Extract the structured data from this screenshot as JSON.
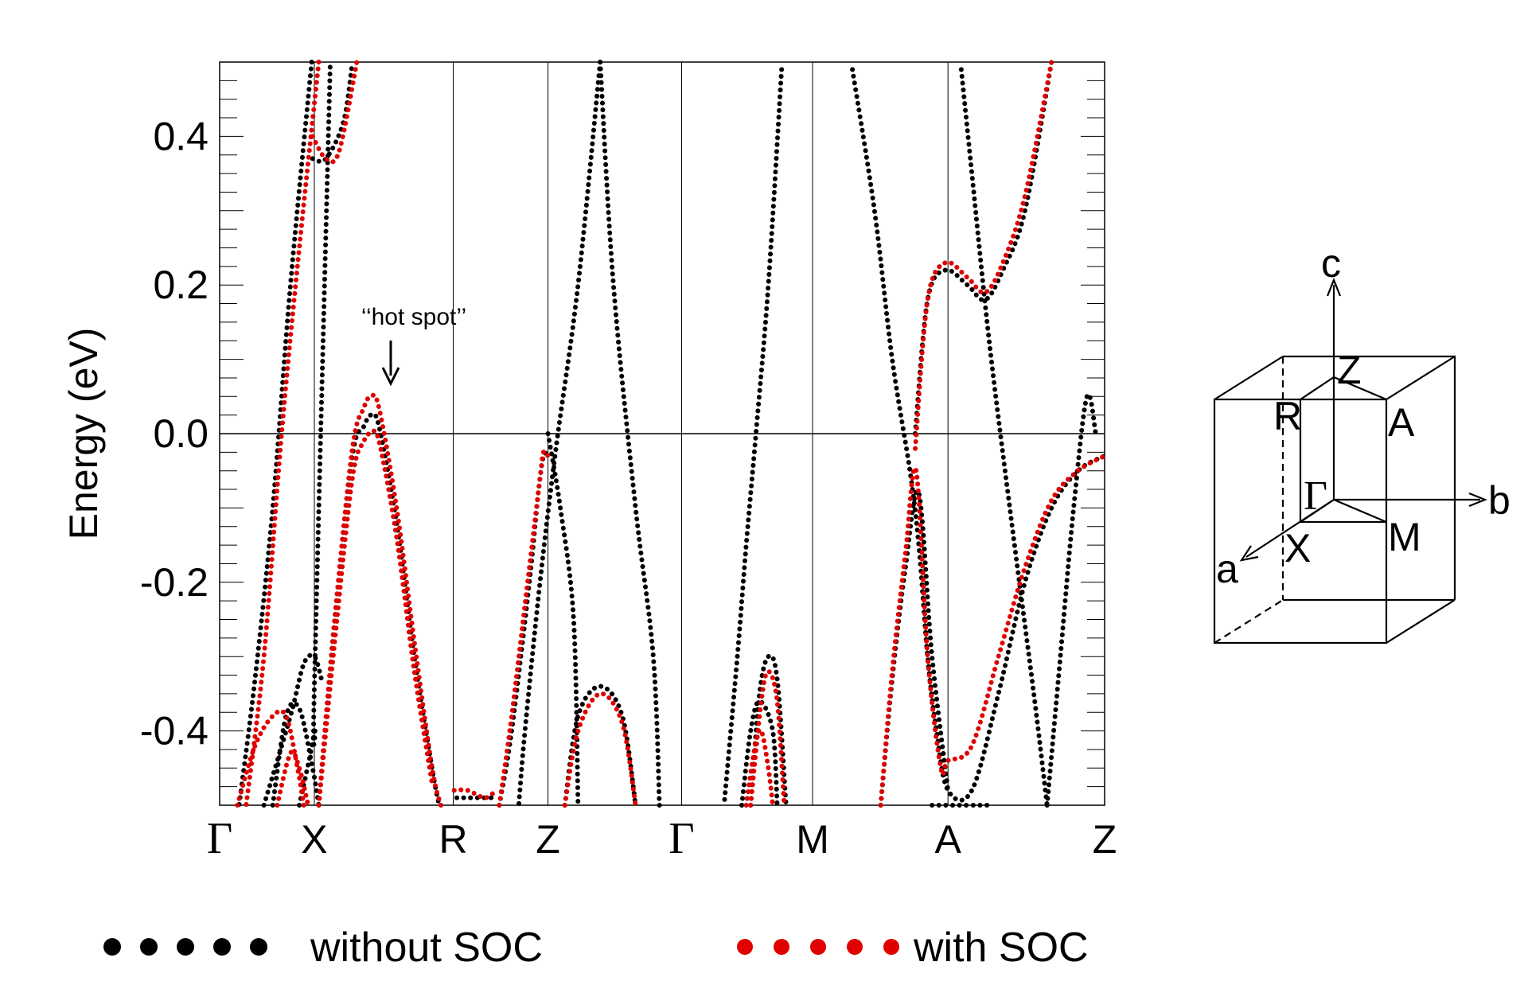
{
  "chart_data": {
    "type": "line",
    "ylabel": "Energy (eV)",
    "ylim": [
      -0.5,
      0.5
    ],
    "y_ticks": [
      {
        "value": 0.4,
        "label": "0.4"
      },
      {
        "value": 0.2,
        "label": "0.2"
      },
      {
        "value": 0.0,
        "label": "0.0"
      },
      {
        "value": -0.2,
        "label": "-0.2"
      },
      {
        "value": -0.4,
        "label": "-0.4"
      }
    ],
    "fermi_level": 0.0,
    "kpath_length": 1.0,
    "k_points": [
      {
        "label": "Γ",
        "k": 0.0
      },
      {
        "label": "X",
        "k": 0.107
      },
      {
        "label": "R",
        "k": 0.264
      },
      {
        "label": "Z",
        "k": 0.371
      },
      {
        "label": "Γ",
        "k": 0.522
      },
      {
        "label": "M",
        "k": 0.67
      },
      {
        "label": "A",
        "k": 0.823
      },
      {
        "label": "Z",
        "k": 1.0
      }
    ],
    "annotation": {
      "text": "‘‘hot spot’’",
      "k": 0.171,
      "energy_from": 0.11,
      "energy_to": 0.06
    },
    "series": [
      {
        "name": "without SOC",
        "color": "#000000",
        "bands": [
          {
            "points": [
              [
                0.104,
                0.5
              ],
              [
                0.08,
                0.2
              ],
              [
                0.06,
                -0.1
              ],
              [
                0.04,
                -0.33
              ],
              [
                0.022,
                -0.5
              ]
            ]
          },
          {
            "points": [
              [
                0.09,
                -0.5
              ],
              [
                0.107,
                -0.4
              ],
              [
                0.107,
                -0.34
              ],
              [
                0.125,
                0.5
              ]
            ]
          },
          {
            "points": [
              [
                0.105,
                0.37
              ],
              [
                0.12,
                0.37
              ],
              [
                0.14,
                0.42
              ],
              [
                0.15,
                0.5
              ]
            ]
          },
          {
            "points": [
              [
                0.06,
                -0.5
              ],
              [
                0.075,
                -0.38
              ],
              [
                0.09,
                -0.37
              ],
              [
                0.105,
                -0.45
              ],
              [
                0.112,
                -0.5
              ]
            ]
          },
          {
            "points": [
              [
                0.05,
                -0.5
              ],
              [
                0.08,
                -0.38
              ],
              [
                0.095,
                -0.31
              ],
              [
                0.107,
                -0.3
              ],
              [
                0.115,
                -0.33
              ]
            ]
          },
          {
            "points": [
              [
                0.112,
                -0.5
              ],
              [
                0.13,
                -0.25
              ],
              [
                0.15,
                -0.03
              ],
              [
                0.163,
                0.01
              ],
              [
                0.171,
                0.025
              ],
              [
                0.18,
                0.01
              ],
              [
                0.2,
                -0.12
              ],
              [
                0.22,
                -0.3
              ],
              [
                0.24,
                -0.45
              ],
              [
                0.248,
                -0.5
              ]
            ]
          },
          {
            "points": [
              [
                0.268,
                -0.49
              ],
              [
                0.28,
                -0.49
              ],
              [
                0.3,
                -0.49
              ],
              [
                0.312,
                -0.49
              ]
            ]
          },
          {
            "points": [
              [
                0.316,
                -0.5
              ],
              [
                0.33,
                -0.4
              ],
              [
                0.35,
                -0.2
              ],
              [
                0.36,
                -0.08
              ],
              [
                0.366,
                -0.03
              ],
              [
                0.371,
                -0.03
              ]
            ]
          },
          {
            "points": [
              [
                0.43,
                0.5
              ],
              [
                0.405,
                0.2
              ],
              [
                0.38,
                -0.02
              ],
              [
                0.362,
                -0.2
              ],
              [
                0.345,
                -0.4
              ],
              [
                0.338,
                -0.5
              ]
            ]
          },
          {
            "points": [
              [
                0.43,
                0.5
              ],
              [
                0.445,
                0.2
              ],
              [
                0.47,
                -0.1
              ],
              [
                0.49,
                -0.3
              ],
              [
                0.497,
                -0.5
              ]
            ]
          },
          {
            "points": [
              [
                0.371,
                0.0
              ],
              [
                0.385,
                -0.1
              ],
              [
                0.4,
                -0.25
              ],
              [
                0.405,
                -0.5
              ]
            ]
          },
          {
            "points": [
              [
                0.39,
                -0.5
              ],
              [
                0.405,
                -0.38
              ],
              [
                0.43,
                -0.34
              ],
              [
                0.455,
                -0.38
              ],
              [
                0.47,
                -0.5
              ]
            ]
          },
          {
            "points": [
              [
                0.635,
                0.49
              ],
              [
                0.62,
                0.2
              ],
              [
                0.606,
                0.0
              ],
              [
                0.595,
                -0.15
              ],
              [
                0.585,
                -0.3
              ],
              [
                0.57,
                -0.5
              ]
            ]
          },
          {
            "points": [
              [
                0.59,
                -0.5
              ],
              [
                0.6,
                -0.4
              ],
              [
                0.61,
                -0.36
              ],
              [
                0.625,
                -0.4
              ],
              [
                0.63,
                -0.5
              ]
            ]
          },
          {
            "points": [
              [
                0.6,
                -0.5
              ],
              [
                0.61,
                -0.35
              ],
              [
                0.62,
                -0.3
              ],
              [
                0.63,
                -0.33
              ],
              [
                0.64,
                -0.5
              ]
            ]
          },
          {
            "points": [
              [
                0.715,
                0.49
              ],
              [
                0.74,
                0.3
              ],
              [
                0.76,
                0.1
              ],
              [
                0.78,
                -0.05
              ],
              [
                0.79,
                -0.15
              ],
              [
                0.8,
                -0.3
              ],
              [
                0.81,
                -0.4
              ],
              [
                0.823,
                -0.48
              ],
              [
                0.85,
                -0.48
              ],
              [
                0.88,
                -0.35
              ],
              [
                0.91,
                -0.2
              ],
              [
                0.94,
                -0.1
              ],
              [
                0.97,
                -0.05
              ],
              [
                1.0,
                -0.03
              ]
            ]
          },
          {
            "points": [
              [
                0.747,
                -0.5
              ],
              [
                0.76,
                -0.33
              ],
              [
                0.775,
                -0.18
              ],
              [
                0.79,
                -0.08
              ],
              [
                0.805,
                -0.3
              ],
              [
                0.823,
                -0.48
              ]
            ]
          },
          {
            "points": [
              [
                0.786,
                0.0
              ],
              [
                0.8,
                0.18
              ],
              [
                0.82,
                0.22
              ],
              [
                0.845,
                0.2
              ],
              [
                0.865,
                0.18
              ],
              [
                0.885,
                0.22
              ],
              [
                0.91,
                0.3
              ],
              [
                0.94,
                0.5
              ]
            ]
          },
          {
            "points": [
              [
                0.805,
                -0.5
              ],
              [
                0.84,
                -0.5
              ],
              [
                0.87,
                -0.5
              ]
            ]
          },
          {
            "points": [
              [
                0.935,
                -0.5
              ],
              [
                0.95,
                -0.3
              ],
              [
                0.965,
                -0.1
              ],
              [
                0.98,
                0.05
              ],
              [
                0.99,
                0.0
              ]
            ]
          },
          {
            "points": [
              [
                0.838,
                0.49
              ],
              [
                0.85,
                0.35
              ],
              [
                0.87,
                0.12
              ],
              [
                0.895,
                -0.12
              ],
              [
                0.92,
                -0.35
              ],
              [
                0.935,
                -0.5
              ]
            ]
          }
        ]
      },
      {
        "name": "with SOC",
        "color": "#e00000",
        "bands": [
          {
            "points": [
              [
                0.112,
                0.5
              ],
              [
                0.09,
                0.25
              ],
              [
                0.07,
                0.0
              ],
              [
                0.05,
                -0.3
              ],
              [
                0.03,
                -0.5
              ]
            ]
          },
          {
            "points": [
              [
                0.105,
                0.4
              ],
              [
                0.12,
                0.37
              ],
              [
                0.135,
                0.38
              ],
              [
                0.155,
                0.5
              ]
            ]
          },
          {
            "points": [
              [
                0.02,
                -0.5
              ],
              [
                0.04,
                -0.42
              ],
              [
                0.06,
                -0.38
              ],
              [
                0.075,
                -0.38
              ],
              [
                0.088,
                -0.45
              ],
              [
                0.095,
                -0.5
              ]
            ]
          },
          {
            "points": [
              [
                0.065,
                -0.5
              ],
              [
                0.08,
                -0.43
              ],
              [
                0.09,
                -0.45
              ],
              [
                0.1,
                -0.5
              ]
            ]
          },
          {
            "points": [
              [
                0.112,
                -0.5
              ],
              [
                0.13,
                -0.25
              ],
              [
                0.15,
                -0.02
              ],
              [
                0.163,
                0.035
              ],
              [
                0.171,
                0.05
              ],
              [
                0.18,
                0.035
              ],
              [
                0.2,
                -0.1
              ],
              [
                0.22,
                -0.28
              ],
              [
                0.24,
                -0.45
              ],
              [
                0.25,
                -0.5
              ]
            ]
          },
          {
            "points": [
              [
                0.112,
                -0.5
              ],
              [
                0.13,
                -0.28
              ],
              [
                0.15,
                -0.06
              ],
              [
                0.163,
                -0.01
              ],
              [
                0.171,
                0.0
              ],
              [
                0.18,
                -0.01
              ],
              [
                0.2,
                -0.14
              ],
              [
                0.22,
                -0.32
              ],
              [
                0.24,
                -0.47
              ]
            ]
          },
          {
            "points": [
              [
                0.265,
                -0.48
              ],
              [
                0.28,
                -0.48
              ],
              [
                0.3,
                -0.49
              ],
              [
                0.312,
                -0.48
              ]
            ]
          },
          {
            "points": [
              [
                0.316,
                -0.5
              ],
              [
                0.33,
                -0.38
              ],
              [
                0.35,
                -0.18
              ],
              [
                0.362,
                -0.06
              ],
              [
                0.366,
                -0.025
              ],
              [
                0.371,
                -0.03
              ]
            ]
          },
          {
            "points": [
              [
                0.39,
                -0.5
              ],
              [
                0.405,
                -0.4
              ],
              [
                0.43,
                -0.35
              ],
              [
                0.455,
                -0.39
              ],
              [
                0.47,
                -0.5
              ]
            ]
          },
          {
            "points": [
              [
                0.595,
                -0.5
              ],
              [
                0.605,
                -0.42
              ],
              [
                0.612,
                -0.4
              ],
              [
                0.62,
                -0.45
              ],
              [
                0.625,
                -0.5
              ]
            ]
          },
          {
            "points": [
              [
                0.6,
                -0.5
              ],
              [
                0.612,
                -0.36
              ],
              [
                0.62,
                -0.32
              ],
              [
                0.63,
                -0.36
              ],
              [
                0.638,
                -0.5
              ]
            ]
          },
          {
            "points": [
              [
                0.786,
                -0.02
              ],
              [
                0.8,
                0.18
              ],
              [
                0.82,
                0.23
              ],
              [
                0.845,
                0.21
              ],
              [
                0.865,
                0.19
              ],
              [
                0.885,
                0.23
              ],
              [
                0.91,
                0.32
              ],
              [
                0.94,
                0.5
              ]
            ]
          },
          {
            "points": [
              [
                0.747,
                -0.5
              ],
              [
                0.76,
                -0.32
              ],
              [
                0.775,
                -0.16
              ],
              [
                0.787,
                -0.05
              ],
              [
                0.8,
                -0.3
              ],
              [
                0.815,
                -0.45
              ],
              [
                0.823,
                -0.44
              ],
              [
                0.85,
                -0.42
              ],
              [
                0.88,
                -0.3
              ],
              [
                0.91,
                -0.18
              ],
              [
                0.94,
                -0.09
              ],
              [
                0.97,
                -0.05
              ],
              [
                1.0,
                -0.03
              ]
            ]
          }
        ]
      }
    ],
    "legend": [
      {
        "label": "without SOC",
        "color": "#000000"
      },
      {
        "label": "with SOC",
        "color": "#e00000"
      }
    ]
  },
  "brillouin_zone": {
    "axes": {
      "a": "a",
      "b": "b",
      "c": "c"
    },
    "points": {
      "gamma": "Γ",
      "x": "X",
      "m": "M",
      "z": "Z",
      "r": "R",
      "a": "A"
    }
  }
}
